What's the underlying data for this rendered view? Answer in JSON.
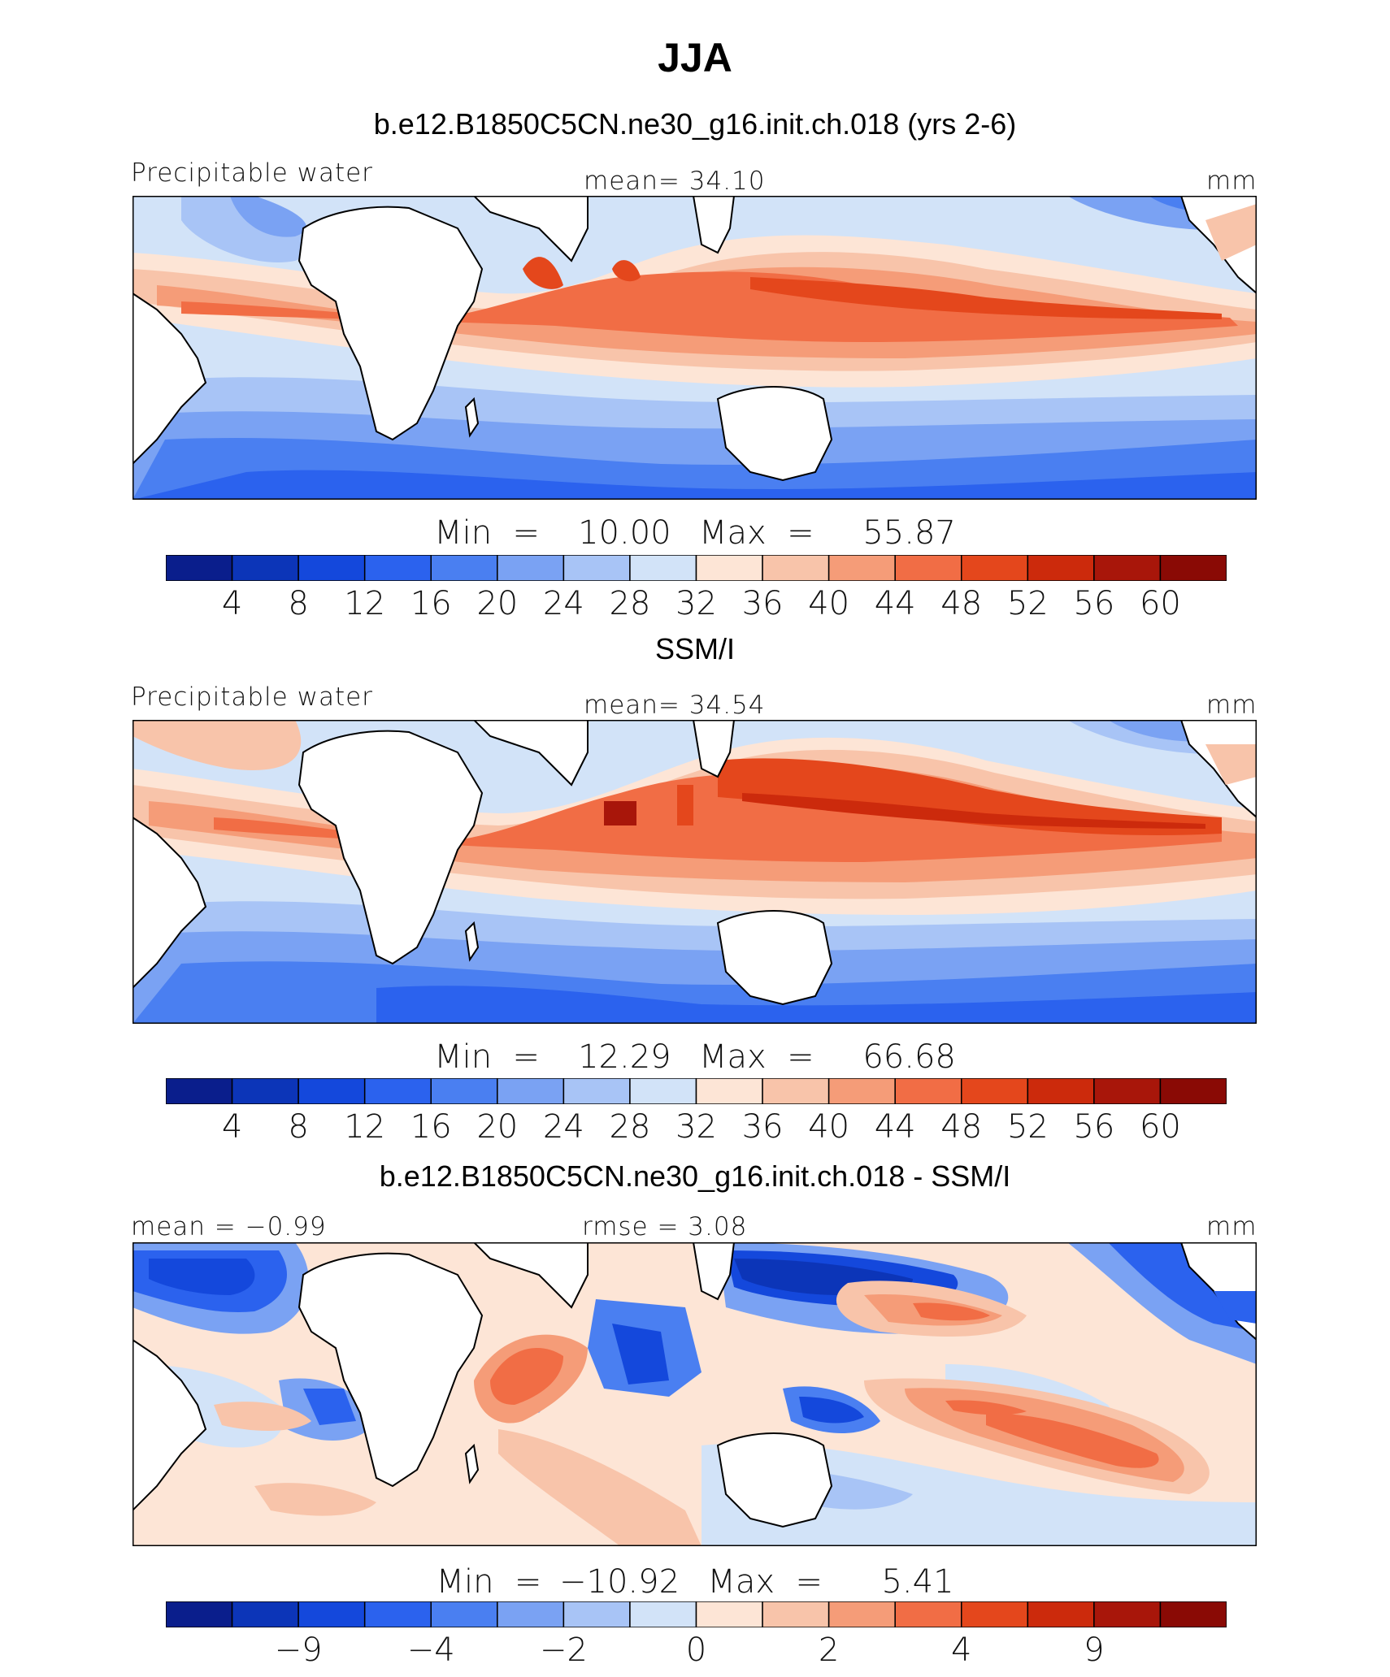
{
  "title": "JJA",
  "colors": {
    "palette": [
      "#0a1e8c",
      "#0c35b8",
      "#1448dc",
      "#2b62ee",
      "#4a7ff1",
      "#7aa2f3",
      "#a8c4f6",
      "#d2e3f8",
      "#fde5d6",
      "#f8c4aa",
      "#f59c78",
      "#f16d45",
      "#e4471c",
      "#cc2a0c",
      "#a8160a",
      "#8a0a05"
    ],
    "land": "#ffffff",
    "coast": "#000000"
  },
  "panels": [
    {
      "title": "b.e12.B1850C5CN.ne30_g16.init.ch.018 (yrs 2-6)",
      "left_label": "Precipitable water",
      "center_label": "mean=  34.10",
      "right_label": "mm",
      "min_label": "Min  =",
      "min_value": "10.00",
      "max_label": "Max  =",
      "max_value": "55.87",
      "colorbar_labels": [
        "4",
        "8",
        "12",
        "16",
        "20",
        "24",
        "28",
        "32",
        "36",
        "40",
        "44",
        "48",
        "52",
        "56",
        "60"
      ]
    },
    {
      "title": "SSM/I",
      "left_label": "Precipitable water",
      "center_label": "mean=  34.54",
      "right_label": "mm",
      "min_label": "Min  =",
      "min_value": "12.29",
      "max_label": "Max  =",
      "max_value": "66.68",
      "colorbar_labels": [
        "4",
        "8",
        "12",
        "16",
        "20",
        "24",
        "28",
        "32",
        "36",
        "40",
        "44",
        "48",
        "52",
        "56",
        "60"
      ]
    },
    {
      "title": "b.e12.B1850C5CN.ne30_g16.init.ch.018 - SSM/I",
      "left_label": "mean =  −0.99",
      "center_label": "rmse =    3.08",
      "right_label": "mm",
      "min_label": "Min  =",
      "min_value": "−10.92",
      "max_label": "Max  =",
      "max_value": "5.41",
      "colorbar_labels": [
        "−9",
        "−4",
        "−2",
        "0",
        "2",
        "4",
        "9"
      ]
    }
  ]
}
